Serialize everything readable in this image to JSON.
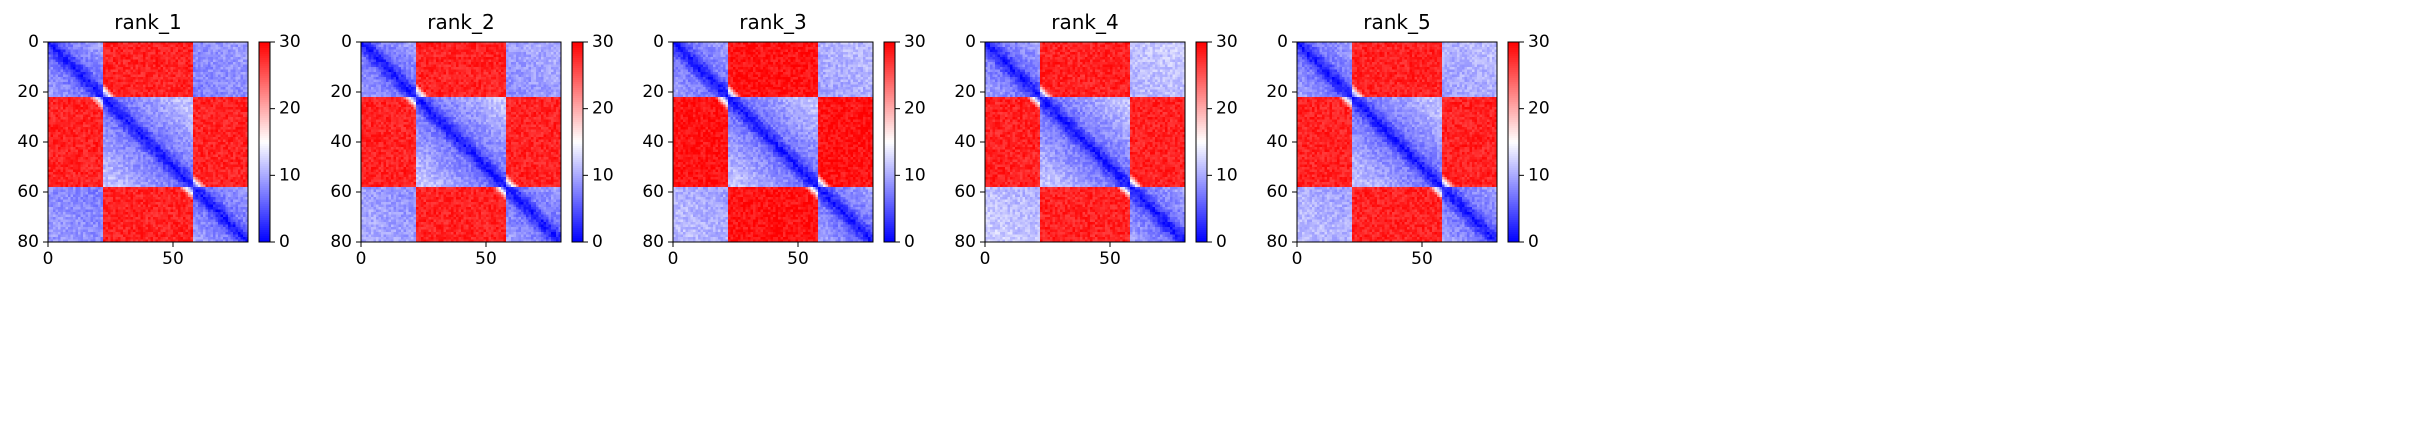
{
  "chart_data": [
    {
      "type": "heatmap",
      "title": "rank_1",
      "x_range": [
        0,
        80
      ],
      "y_range": [
        0,
        80
      ],
      "x_ticks": [
        "0",
        "50"
      ],
      "y_ticks": [
        "0",
        "20",
        "40",
        "60",
        "80"
      ],
      "colorbar": {
        "range": [
          0,
          30
        ],
        "ticks": [
          "0",
          "10",
          "20",
          "30"
        ],
        "colormap": "bwr"
      },
      "pattern": {
        "domain_boundaries": [
          0,
          22,
          58,
          80
        ],
        "diagonal_value": 1,
        "near_block_value": 6,
        "corner_block_value": 8,
        "off_block_value": 28
      }
    },
    {
      "type": "heatmap",
      "title": "rank_2",
      "x_range": [
        0,
        80
      ],
      "y_range": [
        0,
        80
      ],
      "x_ticks": [
        "0",
        "50"
      ],
      "y_ticks": [
        "0",
        "20",
        "40",
        "60",
        "80"
      ],
      "colorbar": {
        "range": [
          0,
          30
        ],
        "ticks": [
          "0",
          "10",
          "20",
          "30"
        ],
        "colormap": "bwr"
      },
      "pattern": {
        "domain_boundaries": [
          0,
          22,
          58,
          80
        ],
        "diagonal_value": 1,
        "near_block_value": 6,
        "corner_block_value": 9,
        "off_block_value": 28
      }
    },
    {
      "type": "heatmap",
      "title": "rank_3",
      "x_range": [
        0,
        80
      ],
      "y_range": [
        0,
        80
      ],
      "x_ticks": [
        "0",
        "50"
      ],
      "y_ticks": [
        "0",
        "20",
        "40",
        "60",
        "80"
      ],
      "colorbar": {
        "range": [
          0,
          30
        ],
        "ticks": [
          "0",
          "10",
          "20",
          "30"
        ],
        "colormap": "bwr"
      },
      "pattern": {
        "domain_boundaries": [
          0,
          22,
          58,
          80
        ],
        "diagonal_value": 1,
        "near_block_value": 6,
        "corner_block_value": 10,
        "off_block_value": 29
      }
    },
    {
      "type": "heatmap",
      "title": "rank_4",
      "x_range": [
        0,
        80
      ],
      "y_range": [
        0,
        80
      ],
      "x_ticks": [
        "0",
        "50"
      ],
      "y_ticks": [
        "0",
        "20",
        "40",
        "60",
        "80"
      ],
      "colorbar": {
        "range": [
          0,
          30
        ],
        "ticks": [
          "0",
          "10",
          "20",
          "30"
        ],
        "colormap": "bwr"
      },
      "pattern": {
        "domain_boundaries": [
          0,
          22,
          58,
          80
        ],
        "diagonal_value": 1,
        "near_block_value": 6,
        "corner_block_value": 11,
        "off_block_value": 28
      }
    },
    {
      "type": "heatmap",
      "title": "rank_5",
      "x_range": [
        0,
        80
      ],
      "y_range": [
        0,
        80
      ],
      "x_ticks": [
        "0",
        "50"
      ],
      "y_ticks": [
        "0",
        "20",
        "40",
        "60",
        "80"
      ],
      "colorbar": {
        "range": [
          0,
          30
        ],
        "ticks": [
          "0",
          "10",
          "20",
          "30"
        ],
        "colormap": "bwr"
      },
      "pattern": {
        "domain_boundaries": [
          0,
          22,
          58,
          80
        ],
        "diagonal_value": 1,
        "near_block_value": 6,
        "corner_block_value": 10,
        "off_block_value": 28
      }
    }
  ]
}
